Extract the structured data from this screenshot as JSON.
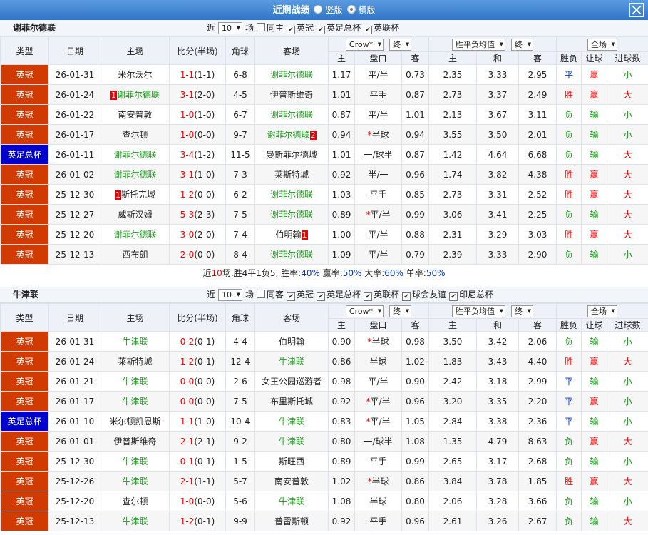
{
  "header": {
    "title": "近期战绩",
    "modes": [
      {
        "label": "竖版",
        "selected": false
      },
      {
        "label": "横版",
        "selected": true
      }
    ]
  },
  "sections": [
    {
      "team": "谢菲尔德联",
      "filter": {
        "near": "近",
        "count": "10",
        "unit": "场",
        "options": [
          {
            "label": "同主",
            "checked": false
          },
          {
            "label": "英冠",
            "checked": true
          },
          {
            "label": "英足总杯",
            "checked": true
          },
          {
            "label": "英联杯",
            "checked": true
          }
        ]
      },
      "columns": [
        "类型",
        "日期",
        "主场",
        "比分(半场)",
        "角球",
        "客场"
      ],
      "dropdowns": [
        [
          "Crow*",
          "终"
        ],
        [
          "胜平负均值",
          "终"
        ],
        [
          "全场"
        ]
      ],
      "subcolumns": [
        "主",
        "盘口",
        "客",
        "主",
        "和",
        "客",
        "胜负",
        "让球",
        "进球数"
      ],
      "rows": [
        {
          "type": "英冠",
          "date": "26-01-31",
          "home": "米尔沃尔",
          "score": "1-1",
          "half": "(1-1)",
          "corner": "6-8",
          "away": "谢菲尔德联",
          "odds": [
            "1.17",
            "平/半",
            "0.73",
            "2.35",
            "3.33",
            "2.95"
          ],
          "results": [
            "平",
            "赢",
            "小"
          ]
        },
        {
          "type": "英冠",
          "date": "26-01-24",
          "home": "谢菲尔德联",
          "home_card": "1",
          "score": "3-1",
          "half": "(2-0)",
          "corner": "4-5",
          "away": "伊普斯维奇",
          "odds": [
            "1.01",
            "平手",
            "0.87",
            "2.73",
            "3.37",
            "2.49"
          ],
          "results": [
            "胜",
            "赢",
            "大"
          ]
        },
        {
          "type": "英冠",
          "date": "26-01-22",
          "home": "南安普敦",
          "score": "1-0",
          "half": "(1-0)",
          "corner": "6-7",
          "away": "谢菲尔德联",
          "odds": [
            "0.87",
            "平/半",
            "1.01",
            "2.13",
            "3.67",
            "3.11"
          ],
          "results": [
            "负",
            "输",
            "小"
          ]
        },
        {
          "type": "英冠",
          "date": "26-01-17",
          "home": "查尔顿",
          "score": "1-0",
          "half": "(0-0)",
          "corner": "9-7",
          "away": "谢菲尔德联",
          "away_card": "2",
          "odds": [
            "0.94",
            "*半球",
            "0.94",
            "3.55",
            "3.50",
            "2.01"
          ],
          "results": [
            "负",
            "输",
            "小"
          ]
        },
        {
          "type": "英足总杯",
          "date": "26-01-11",
          "home": "谢菲尔德联",
          "score": "3-4",
          "half": "(1-2)",
          "corner": "11-5",
          "away": "曼斯菲尔德城",
          "odds": [
            "1.01",
            "一/球半",
            "0.87",
            "1.42",
            "4.64",
            "6.68"
          ],
          "results": [
            "负",
            "输",
            "大"
          ]
        },
        {
          "type": "英冠",
          "date": "26-01-02",
          "home": "谢菲尔德联",
          "score": "3-1",
          "half": "(1-0)",
          "corner": "7-3",
          "away": "莱斯特城",
          "odds": [
            "0.92",
            "半/一",
            "0.96",
            "1.74",
            "3.82",
            "4.38"
          ],
          "results": [
            "胜",
            "赢",
            "大"
          ]
        },
        {
          "type": "英冠",
          "date": "25-12-30",
          "home": "斯托克城",
          "home_card": "1",
          "score": "1-2",
          "half": "(0-0)",
          "corner": "6-2",
          "away": "谢菲尔德联",
          "odds": [
            "1.03",
            "平手",
            "0.85",
            "2.73",
            "3.31",
            "2.52"
          ],
          "results": [
            "胜",
            "赢",
            "大"
          ]
        },
        {
          "type": "英冠",
          "date": "25-12-27",
          "home": "威斯汉姆",
          "score": "5-3",
          "half": "(2-3)",
          "corner": "7-5",
          "away": "谢菲尔德联",
          "odds": [
            "0.89",
            "*平/半",
            "0.99",
            "3.06",
            "3.41",
            "2.25"
          ],
          "results": [
            "负",
            "输",
            "大"
          ]
        },
        {
          "type": "英冠",
          "date": "25-12-20",
          "home": "谢菲尔德联",
          "score": "3-0",
          "half": "(2-0)",
          "corner": "7-4",
          "away": "伯明翰",
          "away_card": "1",
          "odds": [
            "1.00",
            "平/半",
            "0.88",
            "2.31",
            "3.29",
            "3.03"
          ],
          "results": [
            "胜",
            "赢",
            "大"
          ]
        },
        {
          "type": "英冠",
          "date": "25-12-13",
          "home": "西布朗",
          "score": "2-0",
          "half": "(0-0)",
          "corner": "8-4",
          "away": "谢菲尔德联",
          "odds": [
            "1.09",
            "平/半",
            "0.79",
            "2.39",
            "3.33",
            "2.90"
          ],
          "results": [
            "负",
            "输",
            "小"
          ]
        }
      ],
      "summary": [
        "近",
        "10",
        "场,胜4平1负5, 胜率:",
        "40%",
        " 赢率:",
        "50%",
        " 大率:",
        "60%",
        " 单率:",
        "50%"
      ]
    },
    {
      "team": "牛津联",
      "filter": {
        "near": "近",
        "count": "10",
        "unit": "场",
        "options": [
          {
            "label": "同客",
            "checked": false
          },
          {
            "label": "英冠",
            "checked": true
          },
          {
            "label": "英足总杯",
            "checked": true
          },
          {
            "label": "英联杯",
            "checked": true
          },
          {
            "label": "球会友谊",
            "checked": true
          },
          {
            "label": "印尼总杯",
            "checked": true
          }
        ]
      },
      "columns": [
        "类型",
        "日期",
        "主场",
        "比分(半场)",
        "角球",
        "客场"
      ],
      "dropdowns": [
        [
          "Crow*",
          "终"
        ],
        [
          "胜平负均值",
          "终"
        ],
        [
          "全场"
        ]
      ],
      "subcolumns": [
        "主",
        "盘口",
        "客",
        "主",
        "和",
        "客",
        "胜负",
        "让球",
        "进球数"
      ],
      "rows": [
        {
          "type": "英冠",
          "date": "26-01-31",
          "home": "牛津联",
          "score": "0-2",
          "half": "(0-1)",
          "corner": "4-4",
          "away": "伯明翰",
          "odds": [
            "0.90",
            "*半球",
            "0.98",
            "3.50",
            "3.42",
            "2.06"
          ],
          "results": [
            "负",
            "输",
            "小"
          ]
        },
        {
          "type": "英冠",
          "date": "26-01-24",
          "home": "莱斯特城",
          "score": "1-2",
          "half": "(0-1)",
          "corner": "12-4",
          "away": "牛津联",
          "odds": [
            "0.86",
            "半球",
            "1.02",
            "1.83",
            "3.43",
            "4.40"
          ],
          "results": [
            "胜",
            "赢",
            "大"
          ]
        },
        {
          "type": "英冠",
          "date": "26-01-21",
          "home": "牛津联",
          "score": "0-0",
          "half": "(0-0)",
          "corner": "2-6",
          "away": "女王公园巡游者",
          "odds": [
            "0.98",
            "平/半",
            "0.90",
            "2.42",
            "3.18",
            "2.99"
          ],
          "results": [
            "平",
            "输",
            "小"
          ]
        },
        {
          "type": "英冠",
          "date": "26-01-17",
          "home": "牛津联",
          "score": "0-0",
          "half": "(0-0)",
          "corner": "7-5",
          "away": "布里斯托城",
          "odds": [
            "0.92",
            "*平/半",
            "0.96",
            "3.20",
            "3.35",
            "2.20"
          ],
          "results": [
            "平",
            "赢",
            "小"
          ]
        },
        {
          "type": "英足总杯",
          "date": "26-01-10",
          "home": "米尔顿凯恩斯",
          "score": "1-1",
          "half": "(1-0)",
          "corner": "10-4",
          "away": "牛津联",
          "odds": [
            "0.83",
            "*平/半",
            "1.05",
            "2.84",
            "3.38",
            "2.36"
          ],
          "results": [
            "平",
            "输",
            "小"
          ]
        },
        {
          "type": "英冠",
          "date": "26-01-01",
          "home": "伊普斯维奇",
          "score": "2-1",
          "half": "(2-1)",
          "corner": "9-2",
          "away": "牛津联",
          "odds": [
            "0.80",
            "一/球半",
            "1.08",
            "1.35",
            "4.79",
            "8.63"
          ],
          "results": [
            "负",
            "赢",
            "大"
          ]
        },
        {
          "type": "英冠",
          "date": "25-12-30",
          "home": "牛津联",
          "score": "0-1",
          "half": "(0-1)",
          "corner": "1-5",
          "away": "斯旺西",
          "odds": [
            "0.89",
            "平手",
            "0.99",
            "2.65",
            "3.17",
            "2.68"
          ],
          "results": [
            "负",
            "输",
            "小"
          ]
        },
        {
          "type": "英冠",
          "date": "25-12-26",
          "home": "牛津联",
          "score": "2-1",
          "half": "(1-1)",
          "corner": "5-7",
          "away": "南安普敦",
          "odds": [
            "1.02",
            "*半球",
            "0.86",
            "3.84",
            "3.78",
            "1.85"
          ],
          "results": [
            "胜",
            "赢",
            "大"
          ]
        },
        {
          "type": "英冠",
          "date": "25-12-20",
          "home": "查尔顿",
          "score": "1-0",
          "half": "(0-0)",
          "corner": "5-6",
          "away": "牛津联",
          "odds": [
            "1.08",
            "半球",
            "0.80",
            "2.06",
            "3.28",
            "3.66"
          ],
          "results": [
            "负",
            "输",
            "小"
          ]
        },
        {
          "type": "英冠",
          "date": "25-12-13",
          "home": "牛津联",
          "score": "1-2",
          "half": "(0-1)",
          "corner": "9-9",
          "away": "普雷斯顿",
          "odds": [
            "0.92",
            "平手",
            "0.96",
            "2.61",
            "3.26",
            "2.67"
          ],
          "results": [
            "负",
            "输",
            "大"
          ]
        }
      ]
    }
  ]
}
